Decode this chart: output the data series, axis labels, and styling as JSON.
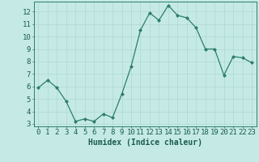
{
  "x": [
    0,
    1,
    2,
    3,
    4,
    5,
    6,
    7,
    8,
    9,
    10,
    11,
    12,
    13,
    14,
    15,
    16,
    17,
    18,
    19,
    20,
    21,
    22,
    23
  ],
  "y": [
    5.9,
    6.5,
    5.9,
    4.8,
    3.2,
    3.4,
    3.2,
    3.8,
    3.5,
    5.4,
    7.6,
    10.5,
    11.9,
    11.3,
    12.5,
    11.7,
    11.5,
    10.7,
    9.0,
    9.0,
    6.9,
    8.4,
    8.3,
    7.9
  ],
  "xlabel": "Humidex (Indice chaleur)",
  "ylim": [
    2.8,
    12.8
  ],
  "xlim": [
    -0.5,
    23.5
  ],
  "yticks": [
    3,
    4,
    5,
    6,
    7,
    8,
    9,
    10,
    11,
    12
  ],
  "xticks": [
    0,
    1,
    2,
    3,
    4,
    5,
    6,
    7,
    8,
    9,
    10,
    11,
    12,
    13,
    14,
    15,
    16,
    17,
    18,
    19,
    20,
    21,
    22,
    23
  ],
  "line_color": "#2d7d6b",
  "marker_color": "#2d7d6b",
  "bg_color": "#c5eae5",
  "grid_color": "#afd8d2",
  "axis_color": "#2d7d6b",
  "tick_label_color": "#1a5c52",
  "xlabel_color": "#1a5c52",
  "xlabel_fontsize": 7.0,
  "tick_fontsize": 6.5
}
